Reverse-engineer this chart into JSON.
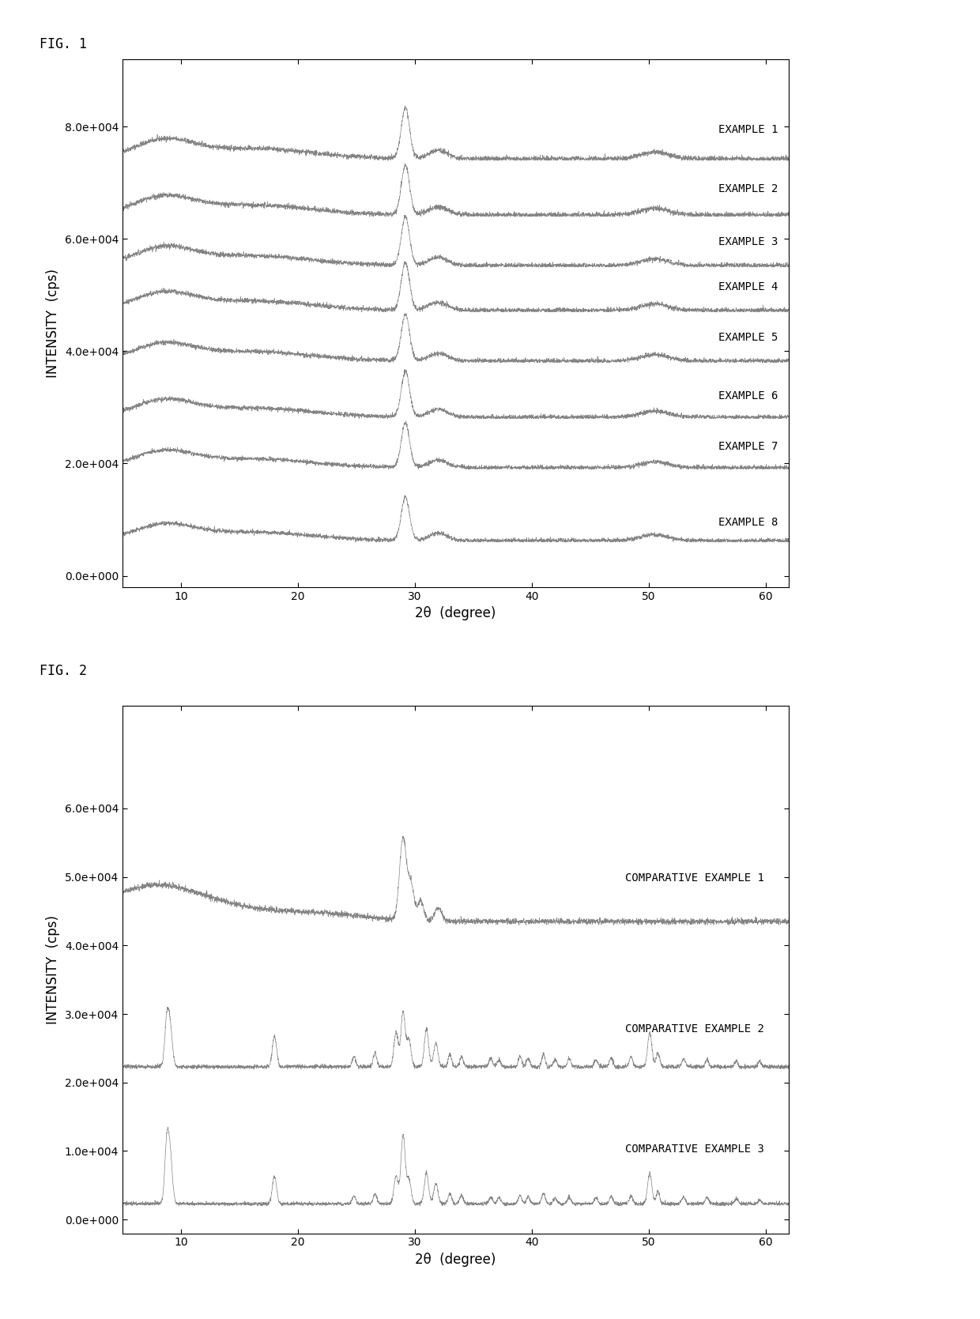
{
  "fig1_title": "FIG. 1",
  "fig2_title": "FIG. 2",
  "xlabel": "2θ  (degree)",
  "ylabel": "INTENSITY  (cps)",
  "fig1_xlim": [
    5,
    62
  ],
  "fig1_ylim": [
    -2000,
    92000
  ],
  "fig2_xlim": [
    5,
    62
  ],
  "fig2_ylim": [
    -2000,
    75000
  ],
  "fig1_yticks": [
    0,
    20000,
    40000,
    60000,
    80000
  ],
  "fig1_ytick_labels": [
    "0.0e+000",
    "2.0e+004",
    "4.0e+004",
    "6.0e+004",
    "8.0e+004"
  ],
  "fig2_yticks": [
    0,
    10000,
    20000,
    30000,
    40000,
    50000,
    60000
  ],
  "fig2_ytick_labels": [
    "0.0e+000",
    "1.0e+004",
    "2.0e+004",
    "3.0e+004",
    "4.0e+004",
    "5.0e+004",
    "6.0e+004"
  ],
  "fig1_xticks": [
    10,
    20,
    30,
    40,
    50,
    60
  ],
  "fig2_xticks": [
    10,
    20,
    30,
    40,
    50,
    60
  ],
  "fig1_examples": [
    "EXAMPLE 1",
    "EXAMPLE 2",
    "EXAMPLE 3",
    "EXAMPLE 4",
    "EXAMPLE 5",
    "EXAMPLE 6",
    "EXAMPLE 7",
    "EXAMPLE 8"
  ],
  "fig1_offsets": [
    74000,
    64000,
    55000,
    47000,
    38000,
    28000,
    19000,
    6000
  ],
  "fig1_label_offsets": [
    4500,
    4000,
    3500,
    3500,
    3500,
    3000,
    3000,
    2500
  ],
  "fig2_examples": [
    "COMPARATIVE EXAMPLE 1",
    "COMPARATIVE EXAMPLE 2",
    "COMPARATIVE EXAMPLE 3"
  ],
  "fig2_offsets": [
    43000,
    22000,
    2000
  ],
  "fig2_label_offsets": [
    6000,
    5000,
    7500
  ],
  "line_color": "#777777",
  "dot_color": "#555555",
  "background_color": "#ffffff",
  "fig_label_fontsize": 12,
  "axis_label_fontsize": 12,
  "tick_label_fontsize": 10,
  "annotation_fontsize": 10
}
